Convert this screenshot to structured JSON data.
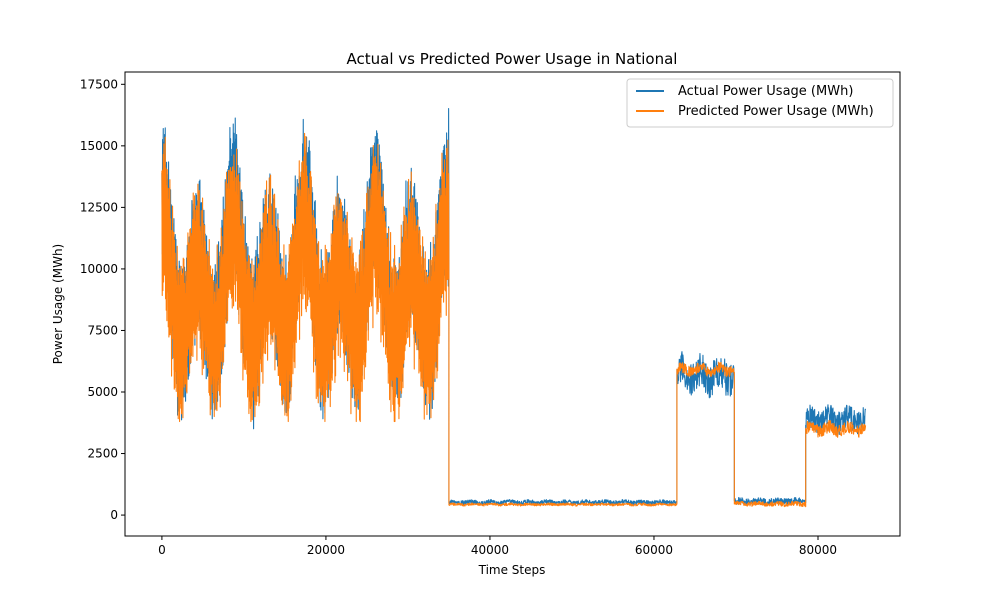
{
  "chart_data": {
    "type": "line",
    "title": "Actual vs Predicted Power Usage in National",
    "xlabel": "Time Steps",
    "ylabel": "Power Usage (MWh)",
    "xlim": [
      -4500,
      90000
    ],
    "ylim": [
      -850,
      18000
    ],
    "xticks": [
      0,
      20000,
      40000,
      60000,
      80000
    ],
    "xtick_labels": [
      "0",
      "20000",
      "40000",
      "60000",
      "80000"
    ],
    "yticks": [
      0,
      2500,
      5000,
      7500,
      10000,
      12500,
      15000,
      17500
    ],
    "ytick_labels": [
      "0",
      "2500",
      "5000",
      "7500",
      "10000",
      "12500",
      "15000",
      "17500"
    ],
    "grid": false,
    "legend_position": "upper-right",
    "series": [
      {
        "name": "Actual Power Usage (MWh)",
        "color": "#1f77b4",
        "segments": [
          {
            "x_start": 0,
            "x_end": 35000,
            "base": 9500,
            "amp": 4200,
            "noise": 1400,
            "min": 3500,
            "max": 17000,
            "seasonal": 8700
          },
          {
            "x_start": 35000,
            "x_end": 62800,
            "base": 520,
            "amp": 60,
            "noise": 90,
            "min": 300,
            "max": 800,
            "seasonal": 0
          },
          {
            "x_start": 62800,
            "x_end": 69800,
            "base": 5700,
            "amp": 600,
            "noise": 700,
            "min": 4000,
            "max": 8300,
            "seasonal": 0
          },
          {
            "x_start": 69800,
            "x_end": 78500,
            "base": 560,
            "amp": 60,
            "noise": 130,
            "min": 100,
            "max": 900,
            "seasonal": 0
          },
          {
            "x_start": 78500,
            "x_end": 85800,
            "base": 3900,
            "amp": 400,
            "noise": 500,
            "min": 1900,
            "max": 5200,
            "seasonal": 0
          }
        ]
      },
      {
        "name": "Predicted Power Usage (MWh)",
        "color": "#ff7f0e",
        "segments": [
          {
            "x_start": 0,
            "x_end": 35000,
            "base": 9000,
            "amp": 3400,
            "noise": 1500,
            "min": 3800,
            "max": 17200,
            "seasonal": 8700
          },
          {
            "x_start": 35000,
            "x_end": 62800,
            "base": 430,
            "amp": 40,
            "noise": 50,
            "min": 300,
            "max": 600,
            "seasonal": 0
          },
          {
            "x_start": 62800,
            "x_end": 69800,
            "base": 5900,
            "amp": 250,
            "noise": 220,
            "min": 5000,
            "max": 6600,
            "seasonal": 0
          },
          {
            "x_start": 69800,
            "x_end": 78500,
            "base": 450,
            "amp": 50,
            "noise": 90,
            "min": 150,
            "max": 700,
            "seasonal": 0
          },
          {
            "x_start": 78500,
            "x_end": 85800,
            "base": 3500,
            "amp": 250,
            "noise": 250,
            "min": 2900,
            "max": 4300,
            "seasonal": 0
          }
        ]
      }
    ]
  }
}
